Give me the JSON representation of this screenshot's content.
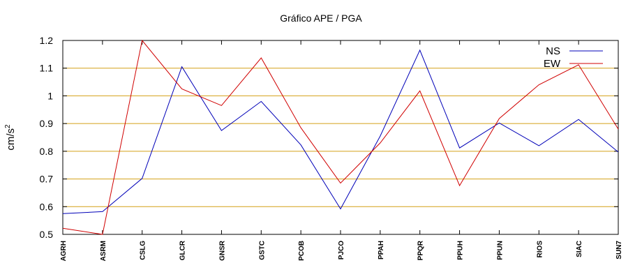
{
  "chart_data": {
    "type": "line",
    "title": "Gráfico  APE / PGA",
    "xlabel": "",
    "ylabel": "cm/s",
    "ylabel_sup": "2",
    "ylim": [
      0.5,
      1.2
    ],
    "yticks": [
      0.5,
      0.6,
      0.7,
      0.8,
      0.9,
      1,
      1.1,
      1.2
    ],
    "ytick_labels": [
      "0.5",
      "0.6",
      "0.7",
      "0.8",
      "0.9",
      "1",
      "1.1",
      "1.2"
    ],
    "grid": "horizontal",
    "legend_position": "top-right",
    "categories": [
      "AGRH",
      "ASRM",
      "CSLG",
      "GLCR",
      "GNSR",
      "GSTC",
      "PCOB",
      "PJCO",
      "PPAH",
      "PPQR",
      "PPUH",
      "PPUN",
      "RIOS",
      "SIAC",
      "SUN7"
    ],
    "series": [
      {
        "name": "NS",
        "color": "#0000b8",
        "values": [
          0.575,
          0.582,
          0.702,
          1.105,
          0.875,
          0.98,
          0.823,
          0.592,
          0.855,
          1.165,
          0.812,
          0.902,
          0.82,
          0.915,
          0.797
        ]
      },
      {
        "name": "EW",
        "color": "#d00000",
        "values": [
          0.522,
          0.5,
          1.2,
          1.025,
          0.965,
          1.137,
          0.885,
          0.685,
          0.83,
          1.018,
          0.676,
          0.918,
          1.04,
          1.112,
          0.88
        ]
      }
    ],
    "grid_color": "#d4a017"
  }
}
